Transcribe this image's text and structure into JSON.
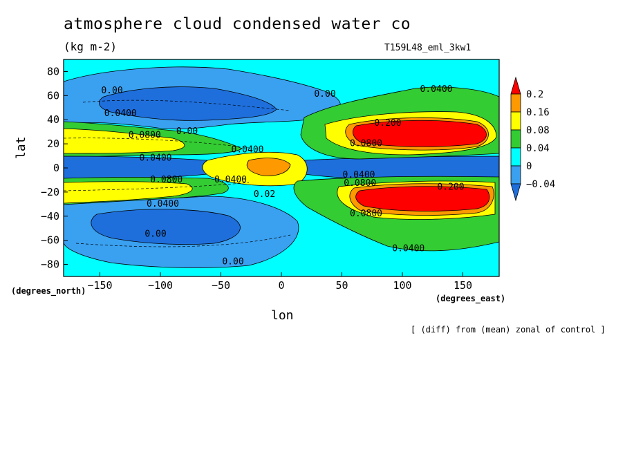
{
  "chart_data": {
    "type": "heatmap",
    "title": "atmosphere cloud condensed water co",
    "units": "(kg m-2)",
    "run_label": "T159L48_eml_3kw1",
    "xlabel": "lon",
    "ylabel": "lat",
    "x_unit_label": "(degrees_east)",
    "y_unit_label": "(degrees_north)",
    "footnote": "[ (diff) from (mean) zonal of control ]",
    "xlim": [
      -180,
      180
    ],
    "ylim": [
      -90,
      90
    ],
    "x_ticks": [
      -150,
      -100,
      -50,
      0,
      50,
      100,
      150
    ],
    "y_ticks": [
      -80,
      -60,
      -40,
      -20,
      0,
      20,
      40,
      60,
      80
    ],
    "colorbar": {
      "levels": [
        -0.04,
        0,
        0.04,
        0.08,
        0.16,
        0.2
      ],
      "labels": [
        "−0.04",
        "0",
        "0.04",
        "0.08",
        "0.16",
        "0.2"
      ],
      "colors": [
        "#1e6fdc",
        "#3aa0f0",
        "#00ffff",
        "#33cc33",
        "#ffff00",
        "#ff9900",
        "#ff0000"
      ]
    },
    "contour_labels": [
      {
        "text": "0.00",
        "lon": -140,
        "lat": 62
      },
      {
        "text": "0.0400",
        "lon": -133,
        "lat": 43
      },
      {
        "text": "0.0800",
        "lon": -113,
        "lat": 25
      },
      {
        "text": "0.00",
        "lon": -78,
        "lat": 28
      },
      {
        "text": "0.0400",
        "lon": -104,
        "lat": 6
      },
      {
        "text": "0.0400",
        "lon": -28,
        "lat": 13
      },
      {
        "text": "0.0800",
        "lon": -95,
        "lat": -12
      },
      {
        "text": "0.0400",
        "lon": -42,
        "lat": -12
      },
      {
        "text": "0.0400",
        "lon": -98,
        "lat": -32
      },
      {
        "text": "0.02",
        "lon": -14,
        "lat": -24
      },
      {
        "text": "0.00",
        "lon": -104,
        "lat": -57
      },
      {
        "text": "0.00",
        "lon": -40,
        "lat": -80
      },
      {
        "text": "0.00",
        "lon": 36,
        "lat": 59
      },
      {
        "text": "0.0400",
        "lon": 128,
        "lat": 63
      },
      {
        "text": "0.200",
        "lon": 88,
        "lat": 35
      },
      {
        "text": "0.0800",
        "lon": 70,
        "lat": 18
      },
      {
        "text": "0.0400",
        "lon": 64,
        "lat": -8
      },
      {
        "text": "0.0800",
        "lon": 65,
        "lat": -15
      },
      {
        "text": "0.200",
        "lon": 140,
        "lat": -18
      },
      {
        "text": "0.0800",
        "lon": 70,
        "lat": -40
      },
      {
        "text": "0.0400",
        "lon": 105,
        "lat": -69
      }
    ]
  }
}
